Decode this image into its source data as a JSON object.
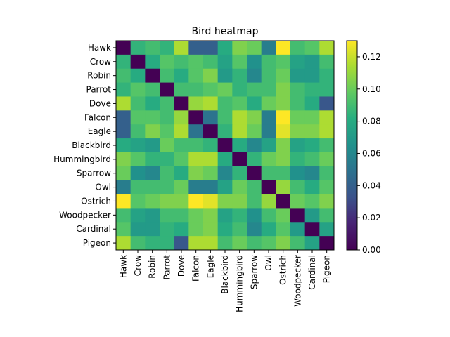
{
  "chart_data": {
    "type": "heatmap",
    "title": "Bird heatmap",
    "xlabel": "",
    "ylabel": "",
    "grid": false,
    "colormap": "viridis",
    "labels": [
      "Hawk",
      "Crow",
      "Robin",
      "Parrot",
      "Dove",
      "Falcon",
      "Eagle",
      "Blackbird",
      "Hummingbird",
      "Sparrow",
      "Owl",
      "Ostrich",
      "Woodpecker",
      "Cardinal",
      "Pigeon"
    ],
    "values": [
      [
        0.0,
        0.085,
        0.09,
        0.085,
        0.115,
        0.04,
        0.04,
        0.08,
        0.105,
        0.1,
        0.055,
        0.13,
        0.09,
        0.095,
        0.115
      ],
      [
        0.085,
        0.0,
        0.08,
        0.095,
        0.09,
        0.095,
        0.09,
        0.075,
        0.095,
        0.065,
        0.09,
        0.095,
        0.075,
        0.07,
        0.09
      ],
      [
        0.09,
        0.08,
        0.0,
        0.09,
        0.08,
        0.095,
        0.105,
        0.07,
        0.085,
        0.06,
        0.09,
        0.1,
        0.07,
        0.07,
        0.085
      ],
      [
        0.085,
        0.095,
        0.09,
        0.0,
        0.09,
        0.09,
        0.095,
        0.1,
        0.085,
        0.09,
        0.09,
        0.105,
        0.09,
        0.085,
        0.085
      ],
      [
        0.115,
        0.09,
        0.08,
        0.09,
        0.0,
        0.11,
        0.115,
        0.09,
        0.095,
        0.08,
        0.1,
        0.105,
        0.09,
        0.08,
        0.035
      ],
      [
        0.04,
        0.095,
        0.095,
        0.09,
        0.11,
        0.0,
        0.05,
        0.09,
        0.115,
        0.105,
        0.055,
        0.13,
        0.1,
        0.1,
        0.115
      ],
      [
        0.04,
        0.09,
        0.105,
        0.095,
        0.115,
        0.05,
        0.0,
        0.085,
        0.115,
        0.1,
        0.055,
        0.125,
        0.105,
        0.105,
        0.115
      ],
      [
        0.08,
        0.075,
        0.07,
        0.1,
        0.09,
        0.09,
        0.085,
        0.0,
        0.08,
        0.06,
        0.075,
        0.105,
        0.075,
        0.08,
        0.09
      ],
      [
        0.105,
        0.095,
        0.085,
        0.085,
        0.095,
        0.115,
        0.115,
        0.08,
        0.0,
        0.085,
        0.1,
        0.105,
        0.085,
        0.09,
        0.1
      ],
      [
        0.1,
        0.065,
        0.06,
        0.09,
        0.08,
        0.105,
        0.1,
        0.06,
        0.085,
        0.0,
        0.09,
        0.09,
        0.065,
        0.06,
        0.09
      ],
      [
        0.055,
        0.09,
        0.09,
        0.09,
        0.1,
        0.055,
        0.055,
        0.075,
        0.1,
        0.09,
        0.0,
        0.11,
        0.09,
        0.08,
        0.095
      ],
      [
        0.13,
        0.095,
        0.1,
        0.105,
        0.105,
        0.13,
        0.125,
        0.105,
        0.105,
        0.09,
        0.11,
        0.0,
        0.1,
        0.095,
        0.105
      ],
      [
        0.09,
        0.075,
        0.07,
        0.09,
        0.09,
        0.1,
        0.105,
        0.075,
        0.085,
        0.065,
        0.09,
        0.1,
        0.0,
        0.07,
        0.09
      ],
      [
        0.095,
        0.07,
        0.07,
        0.085,
        0.08,
        0.1,
        0.105,
        0.08,
        0.09,
        0.06,
        0.08,
        0.095,
        0.07,
        0.0,
        0.075
      ],
      [
        0.115,
        0.09,
        0.085,
        0.085,
        0.035,
        0.115,
        0.115,
        0.09,
        0.1,
        0.09,
        0.095,
        0.105,
        0.09,
        0.075,
        0.0
      ]
    ],
    "colorbar": {
      "min": 0,
      "max": 0.13,
      "ticks": [
        0.0,
        0.02,
        0.04,
        0.06,
        0.08,
        0.1,
        0.12
      ],
      "tick_labels": [
        "0.00",
        "0.02",
        "0.04",
        "0.06",
        "0.08",
        "0.10",
        "0.12"
      ]
    }
  }
}
